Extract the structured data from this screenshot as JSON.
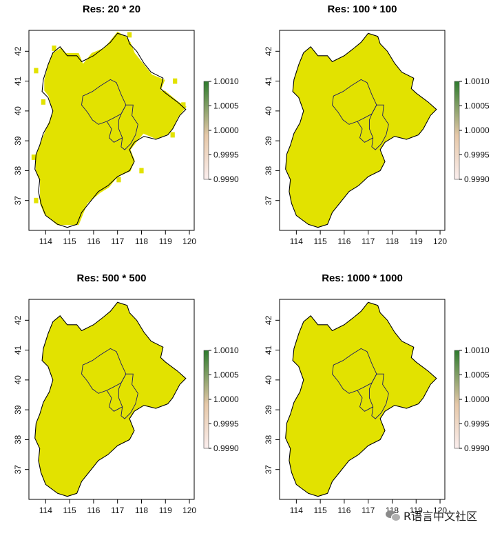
{
  "chart_data": [
    {
      "type": "heatmap",
      "title": "Res:  20 * 20",
      "x_ticks": [
        114,
        115,
        116,
        117,
        118,
        119,
        120
      ],
      "y_ticks": [
        37,
        38,
        39,
        40,
        41,
        42
      ],
      "xlim": [
        113.3,
        120.2
      ],
      "ylim": [
        36.0,
        42.7
      ],
      "legend": {
        "ticks": [
          "1.0010",
          "1.0005",
          "1.0000",
          "0.9995",
          "0.9990"
        ],
        "range": [
          0.999,
          1.001
        ],
        "placement": "right"
      },
      "fill_value": 1.0,
      "fill_color": "#e2e200",
      "blocky": true
    },
    {
      "type": "heatmap",
      "title": "Res:  100 * 100",
      "x_ticks": [
        114,
        115,
        116,
        117,
        118,
        119,
        120
      ],
      "y_ticks": [
        37,
        38,
        39,
        40,
        41,
        42
      ],
      "xlim": [
        113.3,
        120.2
      ],
      "ylim": [
        36.0,
        42.7
      ],
      "legend": {
        "ticks": [
          "1.0010",
          "1.0005",
          "1.0000",
          "0.9995",
          "0.9990"
        ],
        "range": [
          0.999,
          1.001
        ],
        "placement": "right"
      },
      "fill_value": 1.0,
      "fill_color": "#e2e200",
      "blocky": false
    },
    {
      "type": "heatmap",
      "title": "Res:  500 * 500",
      "x_ticks": [
        114,
        115,
        116,
        117,
        118,
        119,
        120
      ],
      "y_ticks": [
        37,
        38,
        39,
        40,
        41,
        42
      ],
      "xlim": [
        113.3,
        120.2
      ],
      "ylim": [
        36.0,
        42.7
      ],
      "legend": {
        "ticks": [
          "1.0010",
          "1.0005",
          "1.0000",
          "0.9995",
          "0.9990"
        ],
        "range": [
          0.999,
          1.001
        ],
        "placement": "right"
      },
      "fill_value": 1.0,
      "fill_color": "#e2e200",
      "blocky": false
    },
    {
      "type": "heatmap",
      "title": "Res:  1000 * 1000",
      "x_ticks": [
        114,
        115,
        116,
        117,
        118,
        119,
        120
      ],
      "y_ticks": [
        37,
        38,
        39,
        40,
        41,
        42
      ],
      "xlim": [
        113.3,
        120.2
      ],
      "ylim": [
        36.0,
        42.7
      ],
      "legend": {
        "ticks": [
          "1.0010",
          "1.0005",
          "1.0000",
          "0.9995",
          "0.9990"
        ],
        "range": [
          0.999,
          1.001
        ],
        "placement": "right"
      },
      "fill_value": 1.0,
      "fill_color": "#e2e200",
      "blocky": false
    }
  ],
  "colors": {
    "legend_top": "#2d7a2d",
    "legend_mid": "#e6c8a8",
    "legend_bottom": "#fbeeee",
    "fill": "#e2e200"
  },
  "watermark": {
    "icon": "wechat-icon",
    "text": "R语言中文社区"
  }
}
